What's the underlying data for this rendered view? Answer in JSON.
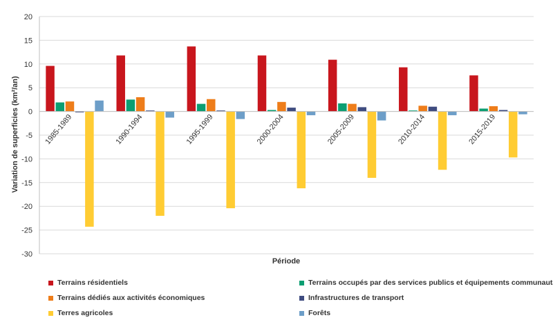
{
  "chart_data": {
    "type": "bar",
    "title": "",
    "xlabel": "Période",
    "ylabel": "Variation de superficies (km²/an)",
    "ylim": [
      -30,
      20
    ],
    "yticks": [
      20,
      15,
      10,
      5,
      0,
      -5,
      -10,
      -15,
      -20,
      -25,
      -30
    ],
    "grid": true,
    "legend_position": "bottom",
    "categories": [
      "1985-1989",
      "1990-1994",
      "1995-1999",
      "2000-2004",
      "2005-2009",
      "2010-2014",
      "2015-2019"
    ],
    "series": [
      {
        "name": "Terrains résidentiels",
        "color": "#c8161d",
        "values": [
          9.6,
          11.8,
          13.7,
          11.8,
          10.9,
          9.3,
          7.6
        ]
      },
      {
        "name": "Terrains occupés par des services publics et équipements communautaires",
        "color": "#0b9e72",
        "values": [
          1.9,
          2.5,
          1.6,
          0.3,
          1.7,
          0.2,
          0.6
        ]
      },
      {
        "name": "Terrains dédiés aux activités économiques",
        "color": "#ee7d1a",
        "values": [
          2.1,
          3.0,
          2.6,
          2.0,
          1.6,
          1.2,
          1.1
        ]
      },
      {
        "name": "Infrastructures de transport",
        "color": "#3f4c80",
        "values": [
          -0.2,
          0.2,
          0.2,
          0.8,
          0.9,
          1.0,
          0.3
        ]
      },
      {
        "name": "Terres agricoles",
        "color": "#ffcc33",
        "values": [
          -24.3,
          -22.0,
          -20.4,
          -16.2,
          -14.0,
          -12.3,
          -9.7
        ]
      },
      {
        "name": "Forêts",
        "color": "#6d9ec8",
        "values": [
          2.3,
          -1.3,
          -1.6,
          -0.8,
          -1.9,
          -0.8,
          -0.6
        ]
      }
    ]
  }
}
